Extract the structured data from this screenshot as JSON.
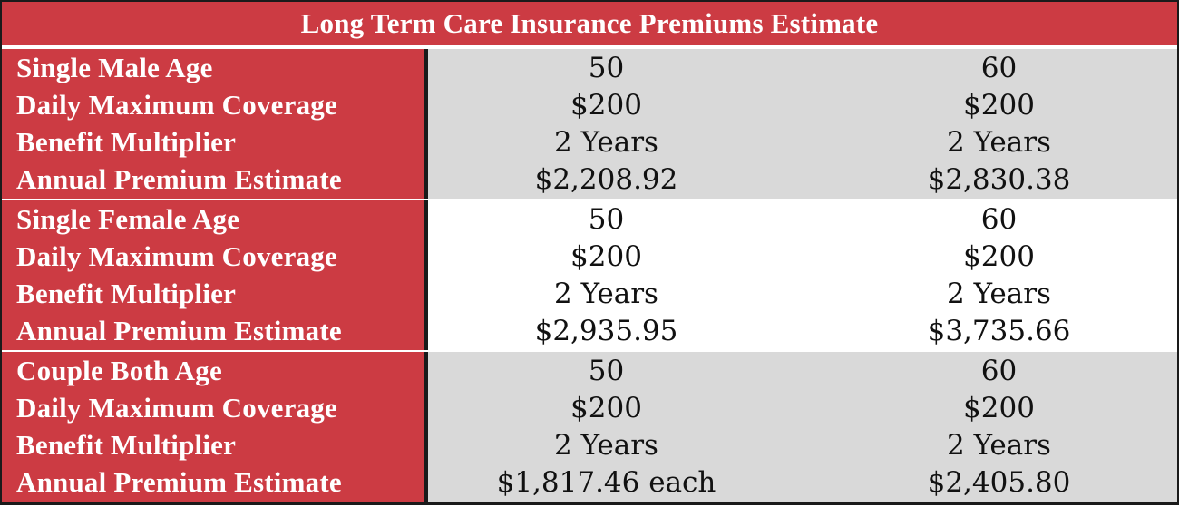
{
  "title": "Long Term Care Insurance Premiums Estimate",
  "colors": {
    "header_red": "#cc3b43",
    "shaded_gray": "#d9d9d9",
    "white": "#ffffff",
    "border": "#1a1a1a"
  },
  "sections": [
    {
      "id": "single-male",
      "shaded": true,
      "rows": [
        {
          "label": "Single Male Age",
          "v1": "50",
          "v2": "60"
        },
        {
          "label": "Daily Maximum Coverage",
          "v1": "$200",
          "v2": "$200"
        },
        {
          "label": "Benefit Multiplier",
          "v1": "2 Years",
          "v2": "2 Years"
        },
        {
          "label": "Annual Premium Estimate",
          "v1": "$2,208.92",
          "v2": "$2,830.38"
        }
      ]
    },
    {
      "id": "single-female",
      "shaded": false,
      "rows": [
        {
          "label": "Single Female Age",
          "v1": "50",
          "v2": "60"
        },
        {
          "label": "Daily Maximum Coverage",
          "v1": "$200",
          "v2": "$200"
        },
        {
          "label": "Benefit Multiplier",
          "v1": "2 Years",
          "v2": "2 Years"
        },
        {
          "label": "Annual Premium Estimate",
          "v1": "$2,935.95",
          "v2": "$3,735.66"
        }
      ]
    },
    {
      "id": "couple",
      "shaded": true,
      "rows": [
        {
          "label": "Couple Both Age",
          "v1": "50",
          "v2": "60"
        },
        {
          "label": "Daily Maximum Coverage",
          "v1": "$200",
          "v2": "$200"
        },
        {
          "label": "Benefit Multiplier",
          "v1": "2 Years",
          "v2": "2 Years"
        },
        {
          "label": "Annual Premium Estimate",
          "v1": "$1,817.46 each",
          "v2": "$2,405.80"
        }
      ]
    }
  ]
}
